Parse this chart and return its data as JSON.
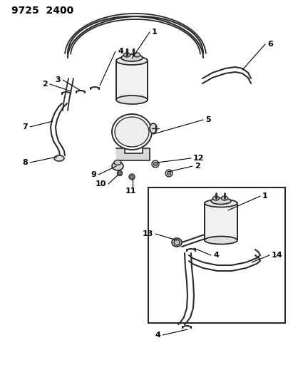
{
  "title": "9725  2400",
  "bg_color": "#ffffff",
  "line_color": "#2a2a2a",
  "label_color": "#000000",
  "title_fontsize": 10,
  "label_fontsize": 8,
  "figsize": [
    4.11,
    5.33
  ],
  "dpi": 100
}
